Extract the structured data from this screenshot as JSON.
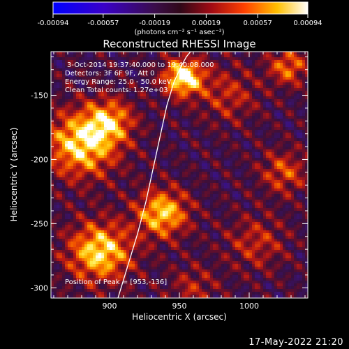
{
  "colors": {
    "background": "#000000",
    "foreground": "#ffffff",
    "colormap": [
      "#0000ff",
      "#2a00cc",
      "#4a0d8a",
      "#30105a",
      "#3a0d3a",
      "#7a0a20",
      "#c81818",
      "#ff6a00",
      "#ffd700",
      "#ffffff"
    ]
  },
  "colorbar": {
    "tick_labels": [
      "-0.00094",
      "-0.00057",
      "-0.00019",
      "0.00019",
      "0.00057",
      "0.00094"
    ],
    "unit_label": "(photons cm⁻² s⁻¹ asec⁻²)",
    "range": [
      -0.00094,
      0.00094
    ]
  },
  "chart_data": {
    "type": "heatmap",
    "title": "Reconstructed RHESSI Image",
    "xlabel": "Heliocentric X (arcsec)",
    "ylabel": "Heliocentric Y (arcsec)",
    "xlim": [
      858,
      1042
    ],
    "ylim": [
      -308,
      -116
    ],
    "x_ticks": [
      900,
      950,
      1000
    ],
    "x_tick_labels": [
      "900",
      "950",
      "1000"
    ],
    "y_ticks": [
      -150,
      -200,
      -250,
      -300
    ],
    "y_tick_labels": [
      "-150",
      "-200",
      "-250",
      "-300"
    ],
    "annotations": [
      "3-Oct-2014 19:37:40.000 to 19:40:08.000",
      "Detectors: 3F 6F 9F, Att 0",
      "Energy Range: 25.0 - 50.0 keV",
      "Clean     Total counts: 1.27e+03"
    ],
    "peak_annotation": "Position of Peak = [953,-136]",
    "peak_position": [
      953,
      -136
    ],
    "sources": [
      {
        "x": 953,
        "y": -136,
        "intensity": 1.0,
        "sigma": 10
      },
      {
        "x": 880,
        "y": -188,
        "intensity": 0.85,
        "sigma": 18
      },
      {
        "x": 900,
        "y": -170,
        "intensity": 0.6,
        "sigma": 12
      },
      {
        "x": 938,
        "y": -242,
        "intensity": 0.8,
        "sigma": 13
      },
      {
        "x": 893,
        "y": -272,
        "intensity": 0.85,
        "sigma": 16
      },
      {
        "x": 1028,
        "y": -128,
        "intensity": 0.55,
        "sigma": 10
      },
      {
        "x": 985,
        "y": -150,
        "intensity": 0.35,
        "sigma": 15
      },
      {
        "x": 1025,
        "y": -210,
        "intensity": 0.45,
        "sigma": 12
      },
      {
        "x": 960,
        "y": -300,
        "intensity": 0.3,
        "sigma": 12
      },
      {
        "x": 1005,
        "y": -265,
        "intensity": 0.35,
        "sigma": 15
      }
    ],
    "limb_curve": {
      "x": [
        906,
        913,
        920,
        926,
        931,
        936,
        941,
        946,
        951,
        955,
        958
      ],
      "y": [
        -308,
        -283,
        -258,
        -233,
        -208,
        -183,
        -158,
        -140,
        -128,
        -120,
        -116
      ]
    }
  },
  "footer": {
    "timestamp": "17-May-2022 21:20"
  }
}
